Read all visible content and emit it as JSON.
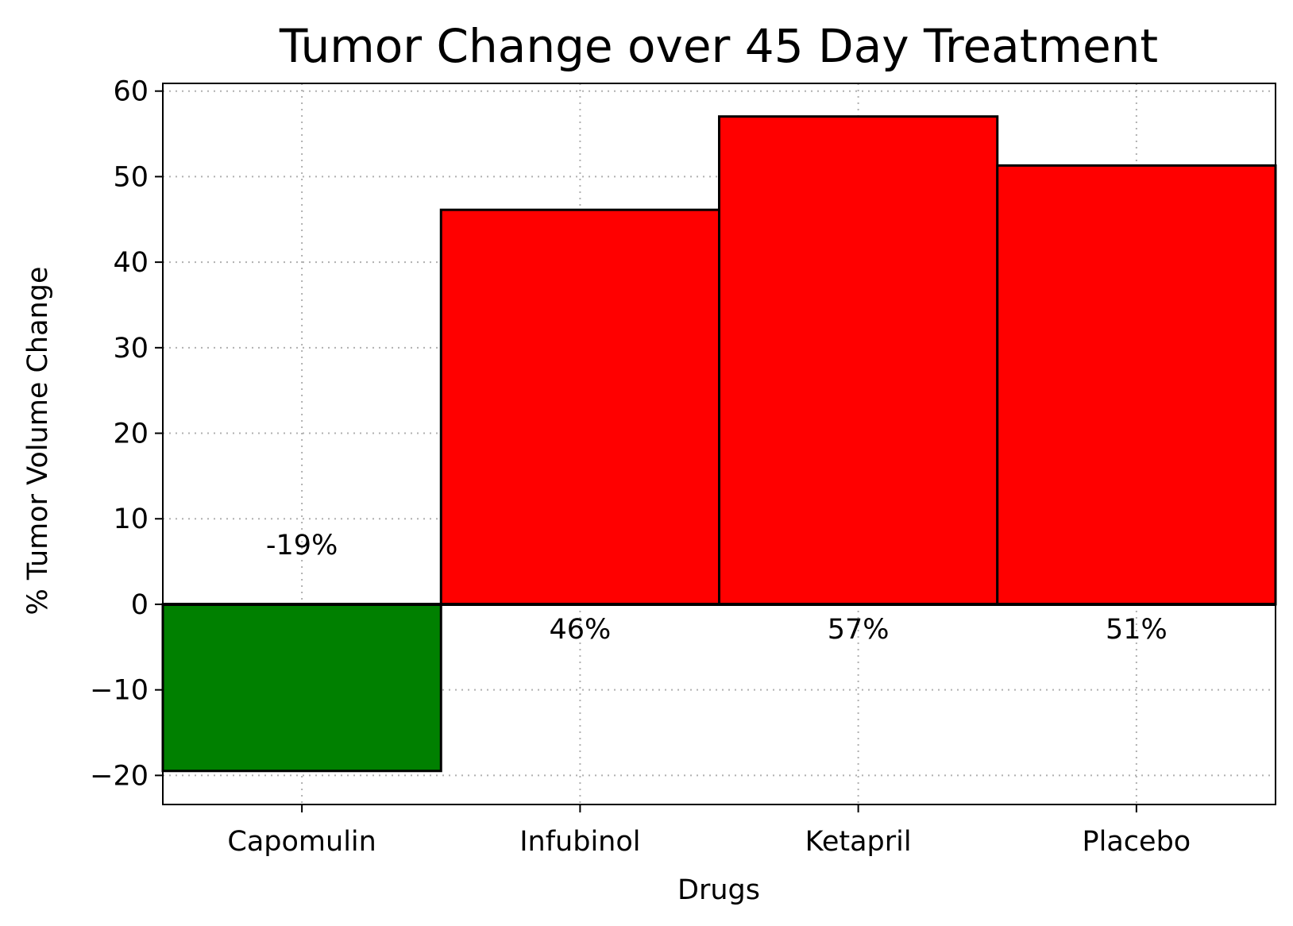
{
  "chart_data": {
    "type": "bar",
    "title": "Tumor Change over 45 Day Treatment",
    "xlabel": "Drugs",
    "ylabel": "% Tumor Volume Change",
    "categories": [
      "Capomulin",
      "Infubinol",
      "Ketapril",
      "Placebo"
    ],
    "values": [
      -19.48,
      46.12,
      57.03,
      51.3
    ],
    "data_labels": [
      "-19%",
      "46%",
      "57%",
      "51%"
    ],
    "bar_colors": [
      "#008000",
      "#ff0000",
      "#ff0000",
      "#ff0000"
    ],
    "edge_color": "#000000",
    "ylim": [
      -23.4,
      60.9
    ],
    "yticks": [
      -20,
      -10,
      0,
      10,
      20,
      30,
      40,
      50,
      60
    ],
    "ytick_labels": [
      "−20",
      "−10",
      "0",
      "10",
      "20",
      "30",
      "40",
      "50",
      "60"
    ],
    "grid": true,
    "grid_style": "dotted",
    "legend": "none"
  }
}
